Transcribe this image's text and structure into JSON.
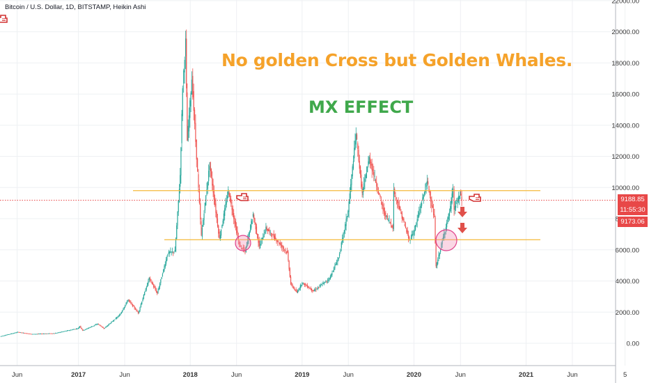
{
  "legend": "Bitcoin / U.S. Dollar, 1D, BITSTAMP, Heikin Ashi",
  "annotations": {
    "headline": "No golden Cross but Golden Whales.",
    "subtitle": "MX EFFECT"
  },
  "price_labels": {
    "last_price": "9188.85",
    "countdown": "11:55:30",
    "prev_price": "9173.06"
  },
  "colors": {
    "up": "#26a69a",
    "down": "#ef5350",
    "level_line": "#f5b93a",
    "price_line": "#e84848",
    "headline": "#f5a22a",
    "subtitle": "#3fa84b"
  },
  "icons": [
    "pointing-hand-icon",
    "down-arrow-icon"
  ],
  "chart_data": {
    "type": "candlestick",
    "style": "Heikin Ashi",
    "symbol": "Bitcoin / U.S. Dollar",
    "interval": "1D",
    "exchange": "BITSTAMP",
    "y_ticks": [
      "22000.00",
      "20000.00",
      "18000.00",
      "16000.00",
      "14000.00",
      "12000.00",
      "10000.00",
      "8000.00",
      "6000.00",
      "4000.00",
      "2000.00",
      "0.00"
    ],
    "x_ticks": [
      "Jun",
      "2017",
      "Jun",
      "2018",
      "Jun",
      "2019",
      "Jun",
      "2020",
      "Jun",
      "2021",
      "Jun",
      "5"
    ],
    "ylim": [
      -1500,
      22000
    ],
    "grid": true,
    "horizontal_levels": [
      9800,
      6650
    ],
    "current_price": 9188.85,
    "price_path": [
      [
        "2016-04-20",
        440
      ],
      [
        "2016-06-17",
        720
      ],
      [
        "2016-08-01",
        590
      ],
      [
        "2016-10-15",
        640
      ],
      [
        "2016-12-31",
        960
      ],
      [
        "2017-01-05",
        1100
      ],
      [
        "2017-01-15",
        820
      ],
      [
        "2017-03-05",
        1250
      ],
      [
        "2017-03-25",
        950
      ],
      [
        "2017-05-15",
        1800
      ],
      [
        "2017-06-12",
        2800
      ],
      [
        "2017-07-15",
        1950
      ],
      [
        "2017-08-20",
        4200
      ],
      [
        "2017-09-15",
        3200
      ],
      [
        "2017-10-20",
        5800
      ],
      [
        "2017-11-12",
        5900
      ],
      [
        "2017-11-29",
        10800
      ],
      [
        "2017-12-07",
        16500
      ],
      [
        "2017-12-17",
        19400
      ],
      [
        "2017-12-22",
        13000
      ],
      [
        "2018-01-06",
        17000
      ],
      [
        "2018-02-06",
        6900
      ],
      [
        "2018-03-05",
        11500
      ],
      [
        "2018-04-06",
        6700
      ],
      [
        "2018-05-05",
        9800
      ],
      [
        "2018-06-10",
        6300
      ],
      [
        "2018-06-29",
        5900
      ],
      [
        "2018-07-25",
        8300
      ],
      [
        "2018-08-14",
        6200
      ],
      [
        "2018-09-05",
        7400
      ],
      [
        "2018-10-15",
        6500
      ],
      [
        "2018-11-14",
        5800
      ],
      [
        "2018-11-25",
        3800
      ],
      [
        "2018-12-15",
        3250
      ],
      [
        "2019-01-01",
        3900
      ],
      [
        "2019-02-07",
        3350
      ],
      [
        "2019-03-31",
        4150
      ],
      [
        "2019-04-30",
        5500
      ],
      [
        "2019-05-31",
        8500
      ],
      [
        "2019-06-26",
        13500
      ],
      [
        "2019-07-16",
        9600
      ],
      [
        "2019-08-08",
        11900
      ],
      [
        "2019-09-25",
        8400
      ],
      [
        "2019-10-24",
        7450
      ],
      [
        "2019-10-27",
        9800
      ],
      [
        "2019-12-17",
        6600
      ],
      [
        "2020-01-03",
        7300
      ],
      [
        "2020-02-13",
        10400
      ],
      [
        "2020-03-08",
        8000
      ],
      [
        "2020-03-13",
        4900
      ],
      [
        "2020-04-29",
        8700
      ],
      [
        "2020-05-07",
        9900
      ],
      [
        "2020-05-11",
        8600
      ],
      [
        "2020-05-31",
        9600
      ],
      [
        "2020-06-02",
        9500
      ],
      [
        "2020-06-05",
        9188.85
      ]
    ]
  }
}
